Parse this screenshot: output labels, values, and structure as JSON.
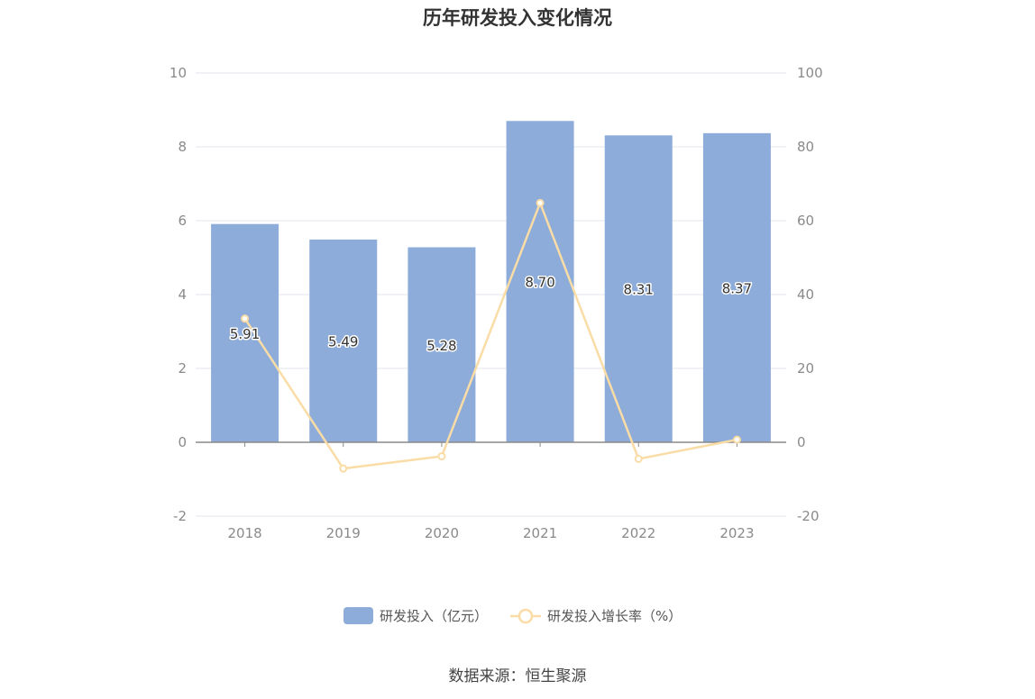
{
  "title": "历年研发投入变化情况",
  "source": "数据来源：恒生聚源",
  "chart_data": {
    "type": "bar",
    "categories": [
      "2018",
      "2019",
      "2020",
      "2021",
      "2022",
      "2023"
    ],
    "series": [
      {
        "name": "研发投入（亿元）",
        "type": "bar",
        "axis": "left",
        "color": "#8eacd9",
        "values": [
          5.91,
          5.49,
          5.28,
          8.7,
          8.31,
          8.37
        ],
        "labels": [
          "5.91",
          "5.49",
          "5.28",
          "8.70",
          "8.31",
          "8.37"
        ]
      },
      {
        "name": "研发投入增长率（%）",
        "type": "line",
        "axis": "right",
        "color": "#f9dca6",
        "values": [
          33.5,
          -7.1,
          -3.8,
          64.8,
          -4.5,
          0.7
        ]
      }
    ],
    "y_left": {
      "min": -2,
      "max": 10,
      "ticks": [
        "-2",
        "0",
        "2",
        "4",
        "6",
        "8",
        "10"
      ]
    },
    "y_right": {
      "min": -20,
      "max": 100,
      "ticks": [
        "-20",
        "0",
        "20",
        "40",
        "60",
        "80",
        "100"
      ]
    },
    "grid": true,
    "legend_position": "bottom"
  }
}
